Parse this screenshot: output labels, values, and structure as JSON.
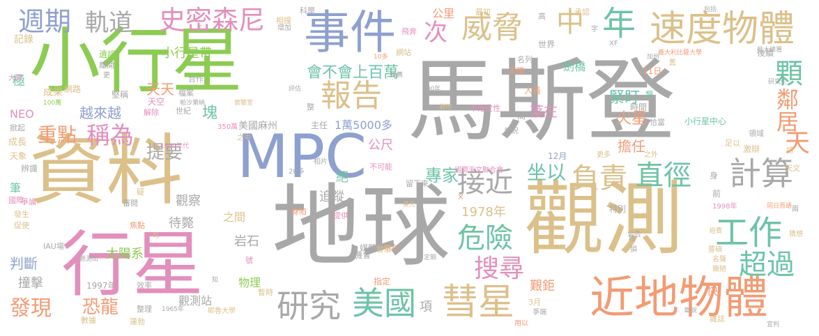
{
  "title": "",
  "colors": {
    "gray": "#a8a8a8",
    "tan": "#dcc08a",
    "green": "#8ccc52",
    "pink": "#e38fbd",
    "blue": "#8ea0cf",
    "teal": "#6cc4a4",
    "orange": "#f39b73",
    "yellow": "#c9b84a"
  },
  "words": [
    {
      "text": "馬斯登",
      "color": "gray"
    },
    {
      "text": "小行星",
      "color": "green"
    },
    {
      "text": "資料",
      "color": "tan"
    },
    {
      "text": "地球",
      "color": "gray"
    },
    {
      "text": "觀測",
      "color": "tan"
    },
    {
      "text": "行星",
      "color": "pink"
    },
    {
      "text": "MPC",
      "color": "blue"
    },
    {
      "text": "事件",
      "color": "blue"
    },
    {
      "text": "近地物體",
      "color": "orange"
    },
    {
      "text": "彗星",
      "color": "tan"
    },
    {
      "text": "速度物體",
      "color": "tan"
    },
    {
      "text": "美國",
      "color": "teal"
    },
    {
      "text": "研究",
      "color": "gray"
    },
    {
      "text": "威脅",
      "color": "tan"
    },
    {
      "text": "史密森尼",
      "color": "pink"
    },
    {
      "text": "報告",
      "color": "tan"
    },
    {
      "text": "週期",
      "color": "blue"
    },
    {
      "text": "軌道",
      "color": "gray"
    },
    {
      "text": "年",
      "color": "teal"
    },
    {
      "text": "中",
      "color": "tan"
    },
    {
      "text": "計算",
      "color": "gray"
    },
    {
      "text": "工作",
      "color": "teal"
    },
    {
      "text": "直徑",
      "color": "teal"
    },
    {
      "text": "負責",
      "color": "tan"
    },
    {
      "text": "接近",
      "color": "gray"
    },
    {
      "text": "危險",
      "color": "teal"
    },
    {
      "text": "搜尋",
      "color": "pink"
    },
    {
      "text": "超過",
      "color": "teal"
    },
    {
      "text": "次",
      "color": "pink"
    },
    {
      "text": "顆",
      "color": "teal"
    },
    {
      "text": "鄰居",
      "color": "orange"
    },
    {
      "text": "天",
      "color": "orange"
    },
    {
      "text": "稱為",
      "color": "pink"
    },
    {
      "text": "發現",
      "color": "orange"
    },
    {
      "text": "專家",
      "color": "teal"
    },
    {
      "text": "坐以",
      "color": "teal"
    },
    {
      "text": "提要",
      "color": "gray"
    },
    {
      "text": "重點",
      "color": "orange"
    },
    {
      "text": "恐龍",
      "color": "orange"
    },
    {
      "text": "會不會上百萬",
      "color": "teal"
    },
    {
      "text": "小行星帶",
      "color": "green"
    },
    {
      "text": "越來越",
      "color": "blue"
    },
    {
      "text": "天天",
      "color": "orange"
    },
    {
      "text": "緊盯",
      "color": "teal"
    },
    {
      "text": "火星",
      "color": "orange"
    },
    {
      "text": "擔任",
      "color": "orange"
    },
    {
      "text": "落在",
      "color": "pink"
    },
    {
      "text": "塊",
      "color": "teal"
    },
    {
      "text": "1萬5000多",
      "color": "blue"
    },
    {
      "text": "美國麻州",
      "color": "gray"
    },
    {
      "text": "主任",
      "color": "gray"
    },
    {
      "text": "公尺",
      "color": "pink"
    },
    {
      "text": "追蹤",
      "color": "gray"
    },
    {
      "text": "絕",
      "color": "teal"
    },
    {
      "text": "1978年",
      "color": "tan"
    },
    {
      "text": "觀察",
      "color": "gray"
    },
    {
      "text": "待斃",
      "color": "gray"
    },
    {
      "text": "之間",
      "color": "tan"
    },
    {
      "text": "岩石",
      "color": "gray"
    },
    {
      "text": "太陽系",
      "color": "green"
    },
    {
      "text": "判斷",
      "color": "blue"
    },
    {
      "text": "撞擊",
      "color": "gray"
    },
    {
      "text": "物理",
      "color": "green"
    },
    {
      "text": "觀測站",
      "color": "gray"
    },
    {
      "text": "項",
      "color": "gray"
    },
    {
      "text": "艱鉅",
      "color": "orange"
    },
    {
      "text": "1997年",
      "color": "gray"
    },
    {
      "text": "國際天文聯合會",
      "color": "pink"
    },
    {
      "text": "小行星中心",
      "color": "teal"
    },
    {
      "text": "11日",
      "color": "orange"
    },
    {
      "text": "劍橋",
      "color": "teal"
    },
    {
      "text": "公里",
      "color": "orange"
    },
    {
      "text": "記錄",
      "color": "tan"
    },
    {
      "text": "極",
      "color": "teal"
    },
    {
      "text": "成果",
      "color": "tan"
    },
    {
      "text": "NEO",
      "color": "pink"
    },
    {
      "text": "成長",
      "color": "tan"
    },
    {
      "text": "天象",
      "color": "tan"
    },
    {
      "text": "辨識",
      "color": "gray"
    },
    {
      "text": "筆",
      "color": "teal"
    },
    {
      "text": "發生",
      "color": "tan"
    },
    {
      "text": "促使",
      "color": "tan"
    },
    {
      "text": "掀起",
      "color": "gray"
    },
    {
      "text": "大眾",
      "color": "pink"
    },
    {
      "text": "IAU場",
      "color": "gray"
    },
    {
      "text": "時間",
      "color": "gray"
    },
    {
      "text": "天文",
      "color": "tan"
    },
    {
      "text": "激辯",
      "color": "tan"
    },
    {
      "text": "領域",
      "color": "gray"
    },
    {
      "text": "後續",
      "color": "gray"
    },
    {
      "text": "身",
      "color": "gray"
    },
    {
      "text": "前",
      "color": "gray"
    },
    {
      "text": "特別",
      "color": "gray"
    },
    {
      "text": "1998年",
      "color": "pink"
    },
    {
      "text": "公告",
      "color": "gray"
    },
    {
      "text": "豐碩",
      "color": "tan"
    },
    {
      "text": "名聲",
      "color": "tan"
    },
    {
      "text": "簡陋",
      "color": "tan"
    },
    {
      "text": "猜想",
      "color": "tan"
    },
    {
      "text": "快",
      "color": "orange"
    },
    {
      "text": "雜誌",
      "color": "tan"
    },
    {
      "text": "3月",
      "color": "tan"
    },
    {
      "text": "12月",
      "color": "blue"
    },
    {
      "text": "更多",
      "color": "tan"
    },
    {
      "text": "不確定性",
      "color": "pink"
    },
    {
      "text": "人員",
      "color": "orange"
    },
    {
      "text": "正確",
      "color": "orange"
    },
    {
      "text": "名列",
      "color": "gray"
    },
    {
      "text": "世界",
      "color": "gray"
    },
    {
      "text": "網站",
      "color": "tan"
    },
    {
      "text": "飛奔",
      "color": "pink"
    },
    {
      "text": "最初",
      "color": "tan"
    },
    {
      "text": "高",
      "color": "gray"
    },
    {
      "text": "承認",
      "color": "tan"
    },
    {
      "text": "字",
      "color": "gray"
    },
    {
      "text": "XF",
      "color": "gray"
    },
    {
      "text": "包括",
      "color": "gray"
    },
    {
      "text": "科學",
      "color": "gray"
    },
    {
      "text": "相撞",
      "color": "tan"
    },
    {
      "text": "增加",
      "color": "gray"
    },
    {
      "text": "遺詞",
      "color": "green"
    },
    {
      "text": "離開",
      "color": "gray"
    },
    {
      "text": "更",
      "color": "gray"
    },
    {
      "text": "網路",
      "color": "tan"
    },
    {
      "text": "堅稱",
      "color": "gray"
    },
    {
      "text": "檔案",
      "color": "gray"
    },
    {
      "text": "天空",
      "color": "pink"
    },
    {
      "text": "解除",
      "color": "pink"
    },
    {
      "text": "世紀",
      "color": "gray"
    },
    {
      "text": "合作",
      "color": "gray"
    },
    {
      "text": "整",
      "color": "gray"
    },
    {
      "text": "媒體",
      "color": "gray"
    },
    {
      "text": "中心",
      "color": "orange"
    },
    {
      "text": "機會",
      "color": "gray"
    },
    {
      "text": "發展",
      "color": "tan"
    },
    {
      "text": "提供",
      "color": "pink"
    },
    {
      "text": "指定",
      "color": "orange"
    },
    {
      "text": "暫時",
      "color": "tan"
    },
    {
      "text": "數據",
      "color": "tan"
    },
    {
      "text": "整理",
      "color": "gray"
    },
    {
      "text": "效率",
      "color": "gray"
    },
    {
      "text": "焦點",
      "color": "orange"
    },
    {
      "text": "句",
      "color": "tan"
    },
    {
      "text": "疑",
      "color": "tan"
    },
    {
      "text": "審閱",
      "color": "gray"
    },
    {
      "text": "身陷",
      "color": "orange"
    },
    {
      "text": "號",
      "color": "pink"
    },
    {
      "text": "不可能",
      "color": "pink"
    },
    {
      "text": "留下來",
      "color": "gray"
    },
    {
      "text": "相片",
      "color": "gray"
    },
    {
      "text": "恰當",
      "color": "gray"
    },
    {
      "text": "情況",
      "color": "gray"
    },
    {
      "text": "之外",
      "color": "tan"
    },
    {
      "text": "足以",
      "color": "tan"
    },
    {
      "text": "研究生",
      "color": "gray"
    },
    {
      "text": "義大利比薩大學",
      "color": "orange"
    },
    {
      "text": "航太總署",
      "color": "gray"
    },
    {
      "text": "舊",
      "color": "tan"
    },
    {
      "text": "加州",
      "color": "gray"
    },
    {
      "text": "同日而語",
      "color": "orange"
    },
    {
      "text": "兩",
      "color": "gray"
    },
    {
      "text": "經費",
      "color": "tan"
    },
    {
      "text": "損",
      "color": "gray"
    },
    {
      "text": "段",
      "color": "gray"
    },
    {
      "text": "帕沙第納",
      "color": "gray"
    },
    {
      "text": "實驗室",
      "color": "tan"
    },
    {
      "text": "評估",
      "color": "gray"
    },
    {
      "text": "推薦",
      "color": "gray"
    },
    {
      "text": "200年",
      "color": "gray"
    },
    {
      "text": "猶他",
      "color": "tan"
    },
    {
      "text": "350萬",
      "color": "pink"
    },
    {
      "text": "1960年代",
      "color": "pink"
    },
    {
      "text": "20多",
      "color": "gray"
    },
    {
      "text": "之中",
      "color": "tan"
    },
    {
      "text": "定期",
      "color": "gray"
    },
    {
      "text": "美元",
      "color": "tan"
    },
    {
      "text": "耶魯大學",
      "color": "tan"
    },
    {
      "text": "1965年",
      "color": "gray"
    },
    {
      "text": "蓮勃",
      "color": "tan"
    },
    {
      "text": "觀測出",
      "color": "gray"
    },
    {
      "text": "知",
      "color": "gray"
    },
    {
      "text": "爭端",
      "color": "gray"
    },
    {
      "text": "用以",
      "color": "orange"
    },
    {
      "text": "斷說",
      "color": "gray"
    },
    {
      "text": "話",
      "color": "tan"
    },
    {
      "text": "爭論",
      "color": "pink"
    },
    {
      "text": "國際",
      "color": "pink"
    },
    {
      "text": "F",
      "color": "gray"
    },
    {
      "text": "10多",
      "color": "orange"
    },
    {
      "text": "100萬",
      "color": "green"
    },
    {
      "text": "類",
      "color": "teal"
    },
    {
      "text": "間",
      "color": "gray"
    },
    {
      "text": "×",
      "color": "orange"
    },
    {
      "text": "宣判",
      "color": "gray"
    }
  ]
}
